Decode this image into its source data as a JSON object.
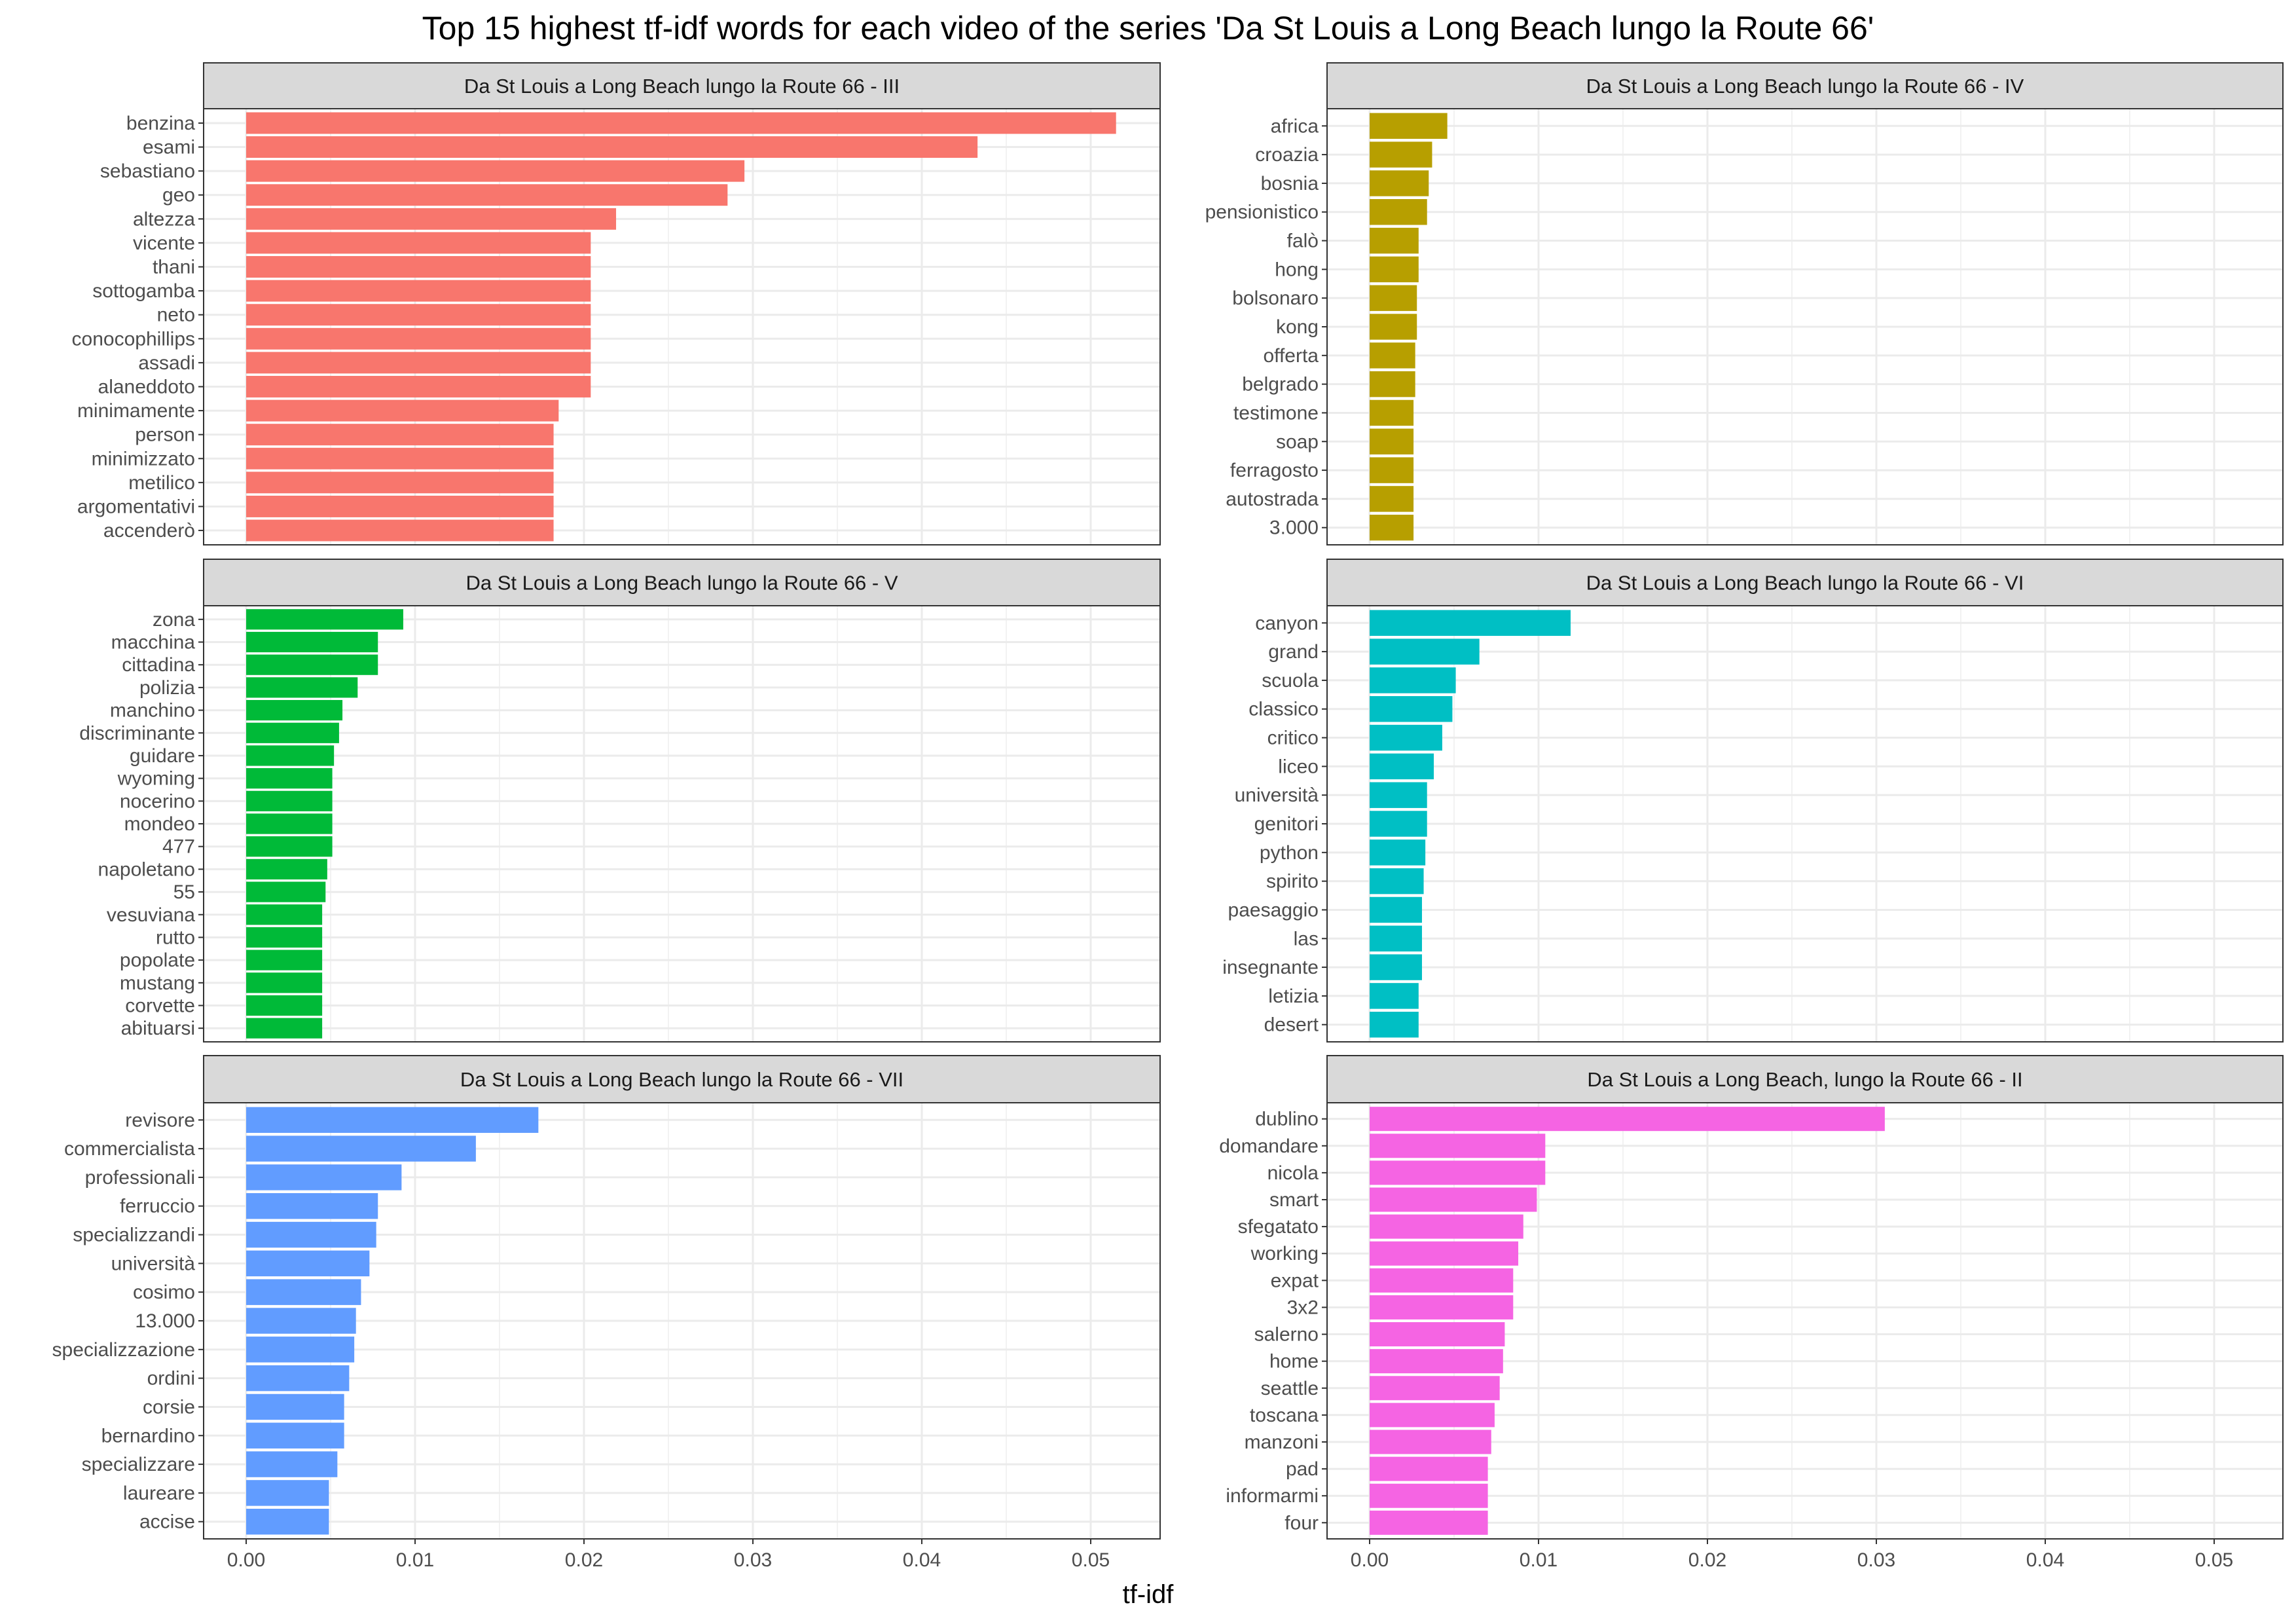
{
  "chart_data": {
    "type": "bar",
    "orientation": "horizontal",
    "title": "Top 15 highest tf-idf words for each video of the series 'Da St Louis a Long Beach lungo la Route 66'",
    "xlabel": "tf-idf",
    "ylabel": "",
    "xlim": [
      0,
      0.054
    ],
    "x_ticks": [
      "0.00",
      "0.01",
      "0.02",
      "0.03",
      "0.04",
      "0.05"
    ],
    "x_tick_values": [
      0,
      0.01,
      0.02,
      0.03,
      0.04,
      0.05
    ],
    "grid": true,
    "legend": "none",
    "facets": [
      {
        "label": "Da St Louis a Long Beach lungo la Route 66 - III",
        "color": "#F8766D",
        "show_x_axis": false,
        "words": [
          "benzina",
          "esami",
          "sebastiano",
          "geo",
          "altezza",
          "vicente",
          "thani",
          "sottogamba",
          "neto",
          "conocophillips",
          "assadi",
          "alaneddoto",
          "minimamente",
          "person",
          "minimizzato",
          "metilico",
          "argomentativi",
          "accenderò"
        ],
        "values": [
          0.0515,
          0.0433,
          0.0295,
          0.0285,
          0.0219,
          0.0204,
          0.0204,
          0.0204,
          0.0204,
          0.0204,
          0.0204,
          0.0204,
          0.0185,
          0.0182,
          0.0182,
          0.0182,
          0.0182,
          0.0182
        ]
      },
      {
        "label": "Da St Louis a Long Beach lungo la Route 66 - IV",
        "color": "#B79F00",
        "show_x_axis": false,
        "words": [
          "africa",
          "croazia",
          "bosnia",
          "pensionistico",
          "falò",
          "hong",
          "bolsonaro",
          "kong",
          "offerta",
          "belgrado",
          "testimone",
          "soap",
          "ferragosto",
          "autostrada",
          "3.000"
        ],
        "values": [
          0.0046,
          0.0037,
          0.0035,
          0.0034,
          0.0029,
          0.0029,
          0.0028,
          0.0028,
          0.0027,
          0.0027,
          0.0026,
          0.0026,
          0.0026,
          0.0026,
          0.0026
        ]
      },
      {
        "label": "Da St Louis a Long Beach lungo la Route 66 - V",
        "color": "#00BA38",
        "show_x_axis": false,
        "words": [
          "zona",
          "macchina",
          "cittadina",
          "polizia",
          "manchino",
          "discriminante",
          "guidare",
          "wyoming",
          "nocerino",
          "mondeo",
          "477",
          "napoletano",
          "55",
          "vesuviana",
          "rutto",
          "popolate",
          "mustang",
          "corvette",
          "abituarsi"
        ],
        "values": [
          0.0093,
          0.0078,
          0.0078,
          0.0066,
          0.0057,
          0.0055,
          0.0052,
          0.0051,
          0.0051,
          0.0051,
          0.0051,
          0.0048,
          0.0047,
          0.0045,
          0.0045,
          0.0045,
          0.0045,
          0.0045,
          0.0045
        ]
      },
      {
        "label": "Da St Louis a Long Beach lungo la Route 66 - VI",
        "color": "#00BFC4",
        "show_x_axis": false,
        "words": [
          "canyon",
          "grand",
          "scuola",
          "classico",
          "critico",
          "liceo",
          "università",
          "genitori",
          "python",
          "spirito",
          "paesaggio",
          "las",
          "insegnante",
          "letizia",
          "desert"
        ],
        "values": [
          0.0119,
          0.0065,
          0.0051,
          0.0049,
          0.0043,
          0.0038,
          0.0034,
          0.0034,
          0.0033,
          0.0032,
          0.0031,
          0.0031,
          0.0031,
          0.0029,
          0.0029
        ]
      },
      {
        "label": "Da St Louis a Long Beach lungo la Route 66 - VII",
        "color": "#619CFF",
        "show_x_axis": true,
        "words": [
          "revisore",
          "commercialista",
          "professionali",
          "ferruccio",
          "specializzandi",
          "università",
          "cosimo",
          "13.000",
          "specializzazione",
          "ordini",
          "corsie",
          "bernardino",
          "specializzare",
          "laureare",
          "accise"
        ],
        "values": [
          0.0173,
          0.0136,
          0.0092,
          0.0078,
          0.0077,
          0.0073,
          0.0068,
          0.0065,
          0.0064,
          0.0061,
          0.0058,
          0.0058,
          0.0054,
          0.0049,
          0.0049
        ]
      },
      {
        "label": "Da St Louis a Long Beach, lungo la Route 66 - II",
        "color": "#F564E3",
        "show_x_axis": true,
        "words": [
          "dublino",
          "domandare",
          "nicola",
          "smart",
          "sfegatato",
          "working",
          "expat",
          "3x2",
          "salerno",
          "home",
          "seattle",
          "toscana",
          "manzoni",
          "pad",
          "informarmi",
          "four"
        ],
        "values": [
          0.0305,
          0.0104,
          0.0104,
          0.0099,
          0.0091,
          0.0088,
          0.0085,
          0.0085,
          0.008,
          0.0079,
          0.0077,
          0.0074,
          0.0072,
          0.007,
          0.007,
          0.007
        ]
      }
    ]
  }
}
